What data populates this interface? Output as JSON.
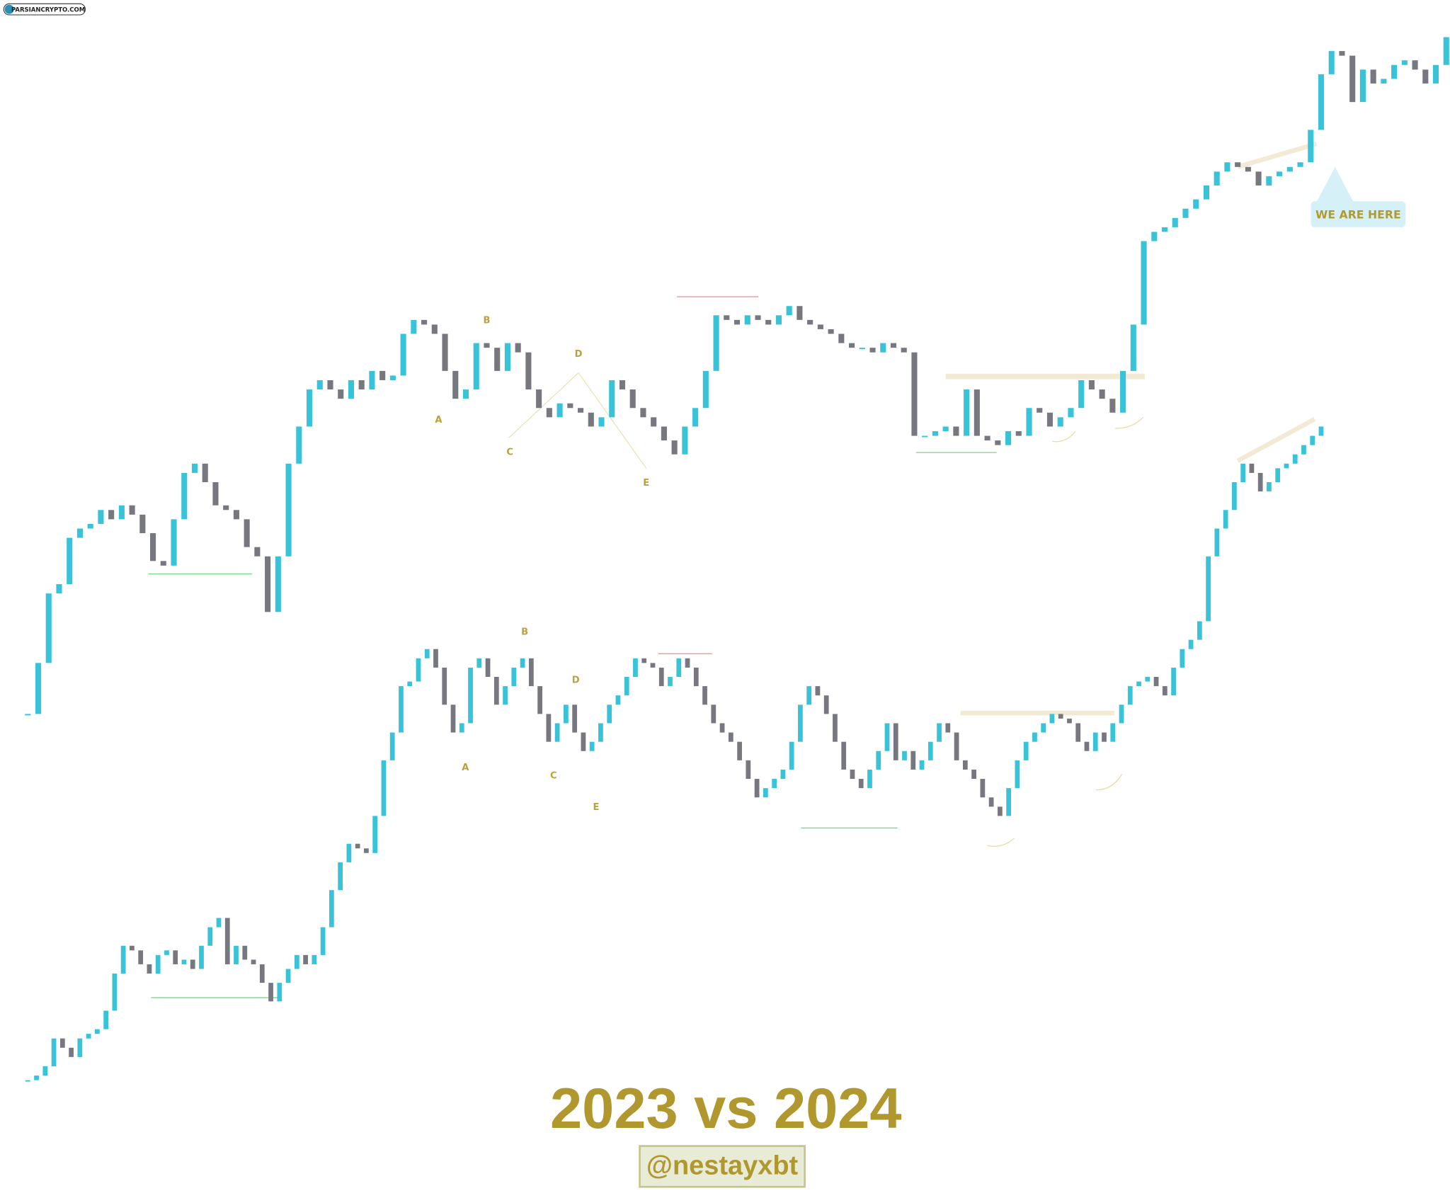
{
  "watermark": "PARSIANCRYPTO.COM",
  "title": "2023 vs 2024",
  "handle": "@nestayxbt",
  "chart_data": [
    {
      "type": "candlestick",
      "up_color": "#38c3d9",
      "down_color": "#77777f",
      "ylim": [
        0,
        760
      ],
      "annotations": [
        "A",
        "B",
        "C",
        "D",
        "E"
      ],
      "callout": "WE ARE HERE",
      "values": [
        10,
        65,
        140,
        150,
        200,
        210,
        215,
        230,
        220,
        235,
        225,
        205,
        175,
        170,
        220,
        270,
        280,
        260,
        235,
        230,
        220,
        190,
        180,
        120,
        180,
        280,
        320,
        360,
        370,
        360,
        350,
        370,
        360,
        380,
        370,
        375,
        420,
        435,
        430,
        420,
        380,
        350,
        360,
        410,
        405,
        380,
        410,
        400,
        360,
        340,
        330,
        345,
        340,
        335,
        320,
        330,
        370,
        360,
        340,
        330,
        320,
        305,
        290,
        320,
        340,
        380,
        440,
        435,
        430,
        440,
        435,
        430,
        440,
        450,
        435,
        430,
        425,
        420,
        410,
        405,
        405,
        400,
        410,
        405,
        400,
        310,
        310,
        315,
        320,
        310,
        360,
        310,
        305,
        300,
        315,
        310,
        340,
        335,
        320,
        330,
        340,
        370,
        360,
        350,
        335,
        380,
        430,
        520,
        530,
        535,
        545,
        555,
        565,
        580,
        595,
        605,
        600,
        595,
        580,
        590,
        595,
        600,
        605,
        640,
        700,
        725,
        720,
        670,
        705,
        690,
        695,
        710,
        715,
        705,
        690,
        710,
        740
      ]
    },
    {
      "type": "candlestick",
      "up_color": "#38c3d9",
      "down_color": "#77777f",
      "ylim": [
        0,
        760
      ],
      "annotations": [
        "A",
        "B",
        "C",
        "D",
        "E"
      ],
      "values": [
        15,
        20,
        30,
        60,
        50,
        40,
        60,
        65,
        70,
        90,
        130,
        160,
        155,
        140,
        130,
        150,
        155,
        140,
        145,
        135,
        160,
        180,
        190,
        140,
        160,
        145,
        140,
        120,
        100,
        120,
        135,
        150,
        140,
        150,
        180,
        220,
        250,
        270,
        265,
        260,
        300,
        360,
        390,
        440,
        445,
        470,
        480,
        460,
        420,
        390,
        400,
        460,
        470,
        450,
        420,
        440,
        460,
        470,
        440,
        410,
        380,
        400,
        420,
        390,
        370,
        380,
        400,
        420,
        430,
        450,
        470,
        465,
        460,
        440,
        450,
        470,
        460,
        440,
        420,
        400,
        390,
        380,
        360,
        340,
        320,
        330,
        340,
        350,
        380,
        420,
        440,
        430,
        410,
        380,
        350,
        340,
        330,
        350,
        370,
        400,
        360,
        370,
        350,
        360,
        380,
        400,
        390,
        360,
        350,
        340,
        320,
        310,
        300,
        330,
        360,
        380,
        390,
        400,
        410,
        405,
        400,
        380,
        370,
        390,
        380,
        400,
        420,
        440,
        445,
        450,
        440,
        430,
        460,
        480,
        490,
        510,
        580,
        610,
        630,
        660,
        680,
        670,
        650,
        660,
        675,
        680,
        690,
        700,
        710,
        720
      ]
    }
  ]
}
